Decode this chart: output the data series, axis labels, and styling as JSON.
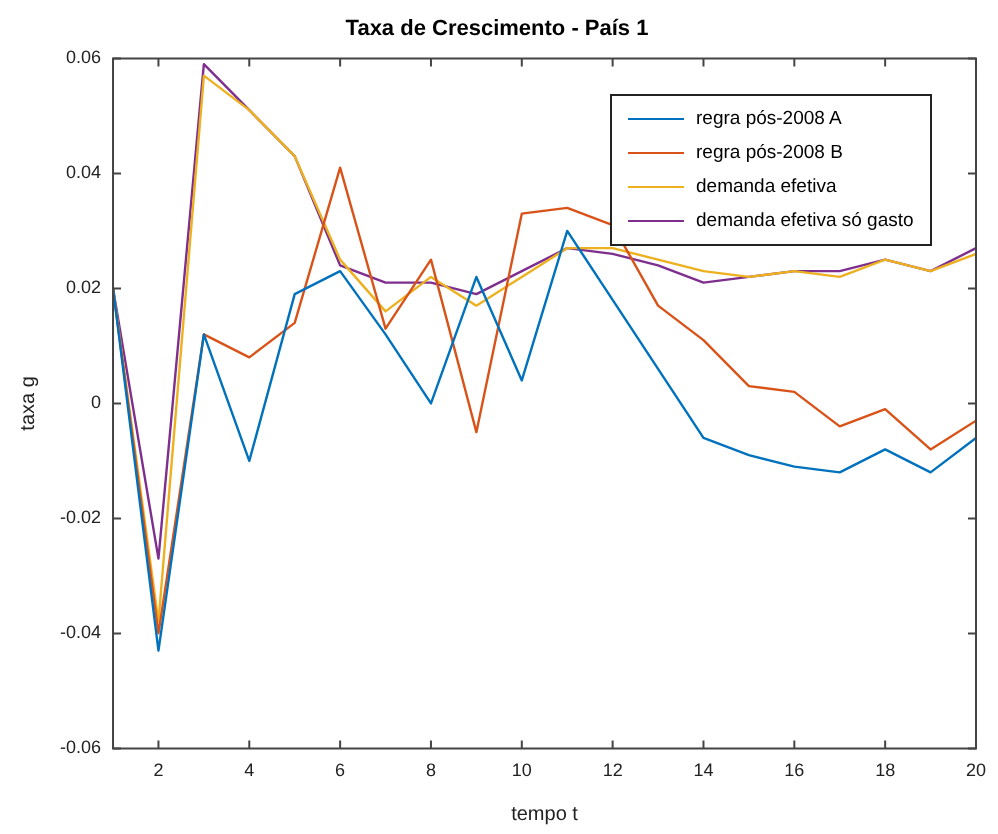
{
  "chart_data": {
    "type": "line",
    "title": "Taxa de Crescimento - País 1",
    "xlabel": "tempo t",
    "ylabel": "taxa g",
    "x": [
      1,
      2,
      3,
      4,
      5,
      6,
      7,
      8,
      9,
      10,
      11,
      12,
      13,
      14,
      15,
      16,
      17,
      18,
      19,
      20
    ],
    "series": [
      {
        "name": "regra pós-2008 A",
        "color": "#0072bd",
        "values": [
          0.02,
          -0.043,
          0.012,
          -0.01,
          0.019,
          0.023,
          0.012,
          0,
          0.022,
          0.004,
          0.03,
          0.018,
          0.006,
          -0.006,
          -0.009,
          -0.011,
          -0.012,
          -0.008,
          -0.012,
          -0.006
        ]
      },
      {
        "name": "regra pós-2008 B",
        "color": "#d95319",
        "values": [
          0.02,
          -0.04,
          0.012,
          0.008,
          0.014,
          0.041,
          0.013,
          0.025,
          -0.005,
          0.033,
          0.034,
          0.031,
          0.017,
          0.011,
          0.003,
          0.002,
          -0.004,
          -0.001,
          -0.008,
          -0.003
        ]
      },
      {
        "name": "demanda efetiva",
        "color": "#edb120",
        "values": [
          0.02,
          -0.038,
          0.057,
          0.051,
          0.043,
          0.025,
          0.016,
          0.022,
          0.017,
          0.022,
          0.027,
          0.027,
          0.025,
          0.023,
          0.022,
          0.023,
          0.022,
          0.025,
          0.023,
          0.026
        ]
      },
      {
        "name": "demanda efetiva só gasto",
        "color": "#7e2f8e",
        "values": [
          0.02,
          -0.027,
          0.059,
          0.051,
          0.043,
          0.024,
          0.021,
          0.021,
          0.019,
          0.023,
          0.027,
          0.026,
          0.024,
          0.021,
          0.022,
          0.023,
          0.023,
          0.025,
          0.023,
          0.027
        ]
      }
    ],
    "xlim": [
      1,
      20
    ],
    "xticks": [
      2,
      4,
      6,
      8,
      10,
      12,
      14,
      16,
      18,
      20
    ],
    "ylim": [
      -0.06,
      0.06
    ],
    "yticks": [
      -0.06,
      -0.04,
      -0.02,
      0,
      0.02,
      0.04,
      0.06
    ],
    "grid": false,
    "legend": "top right",
    "marker": "none",
    "line_style": "solid"
  }
}
